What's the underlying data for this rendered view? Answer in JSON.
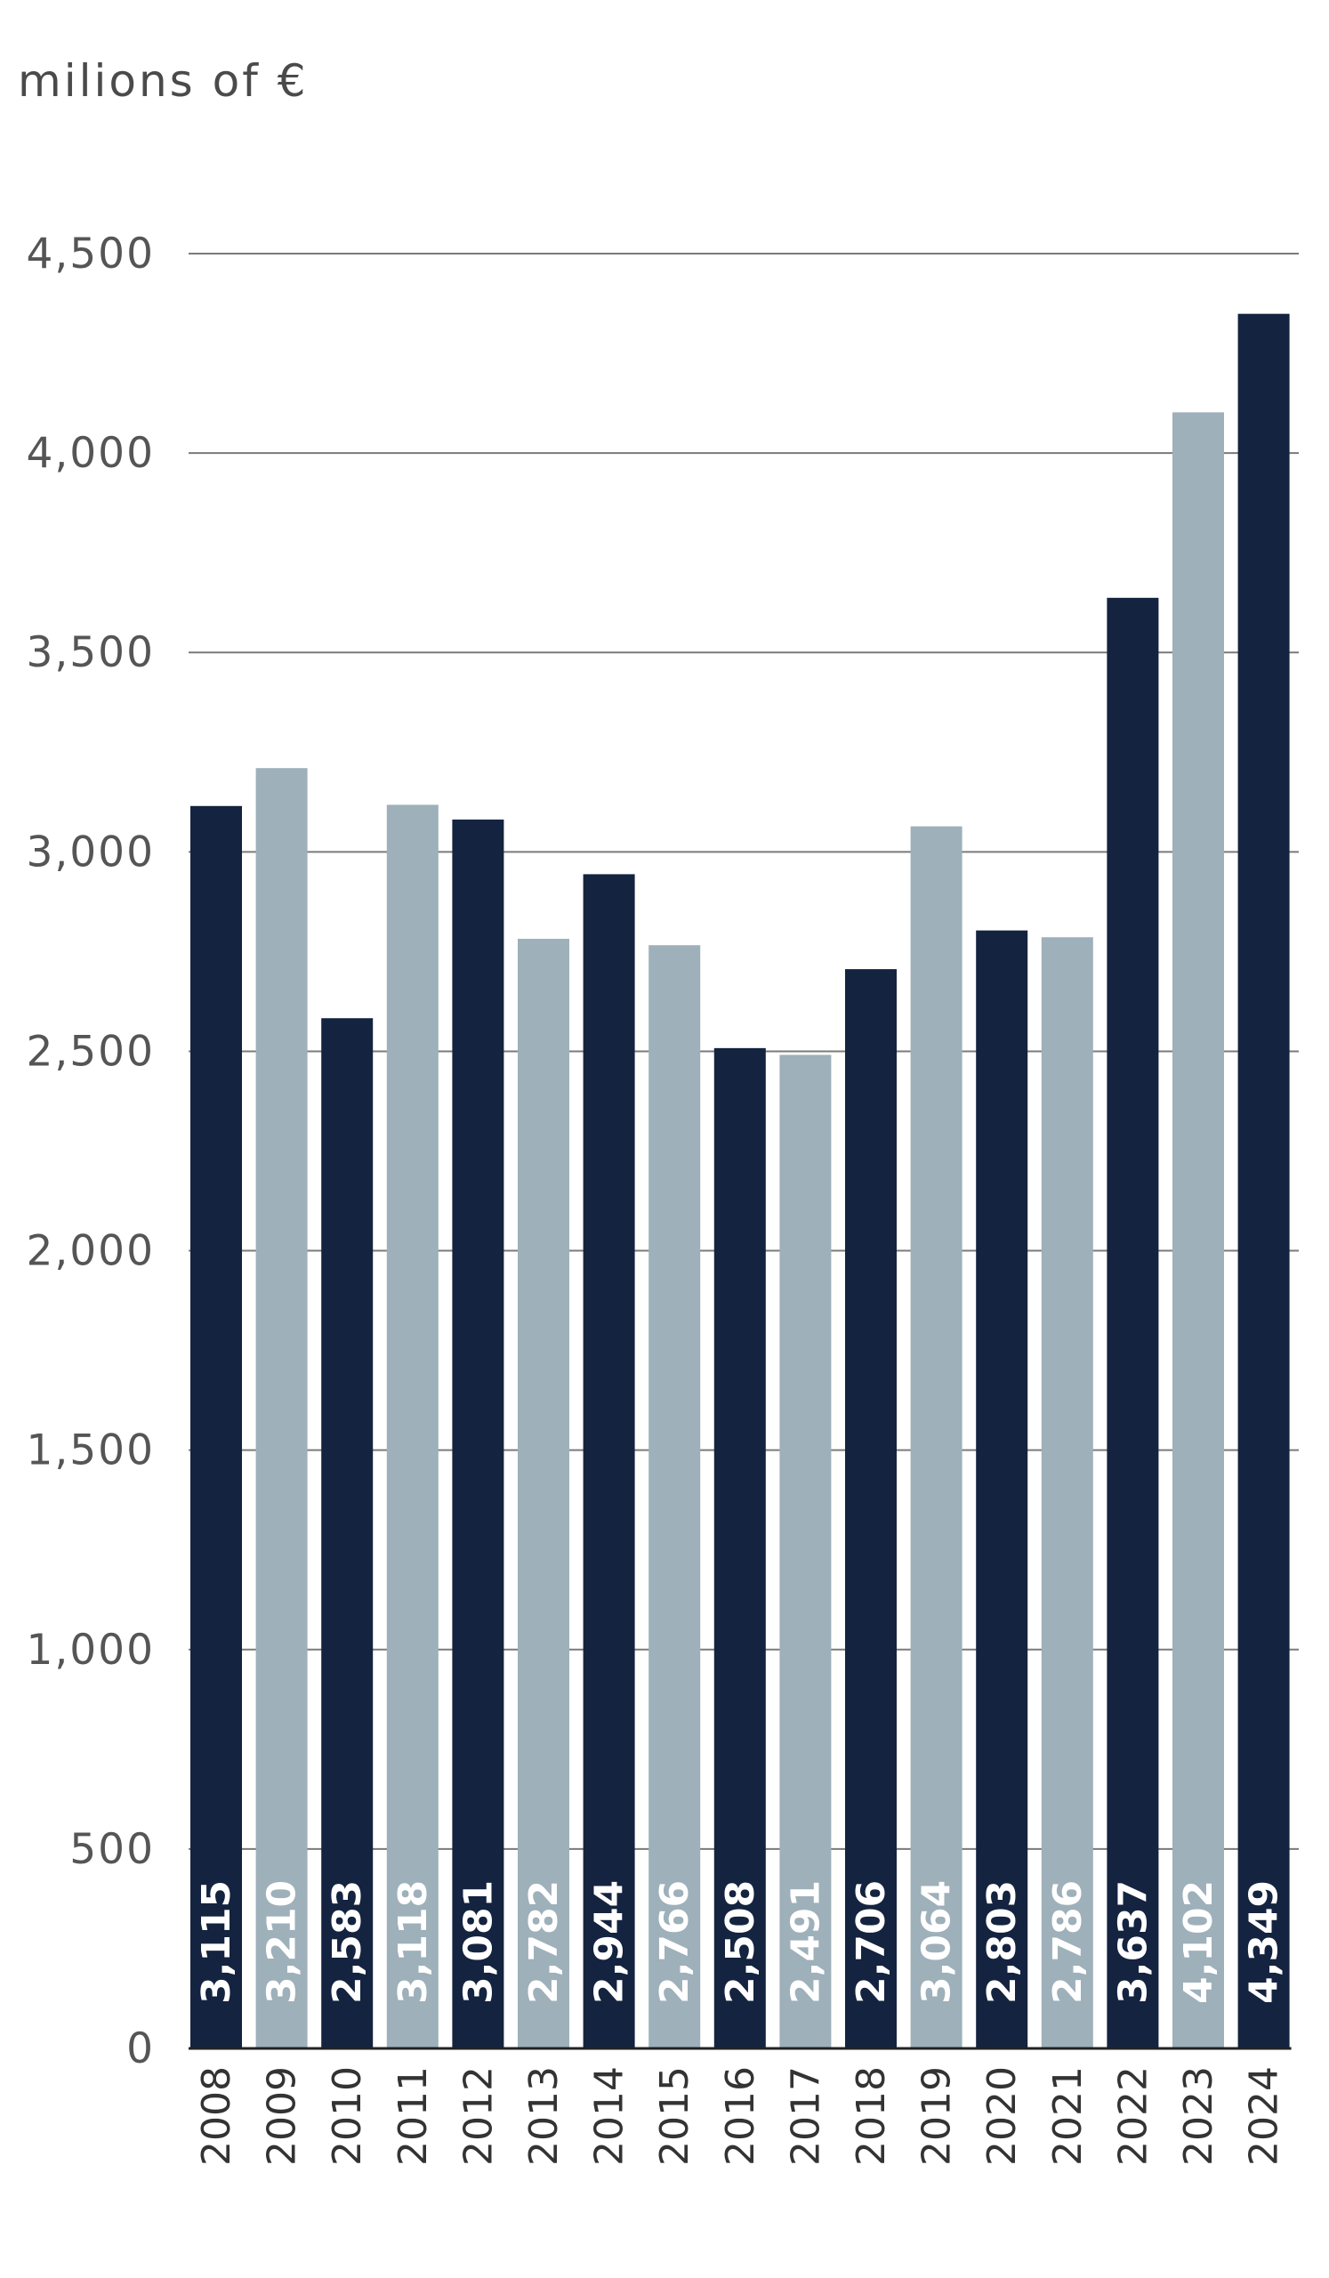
{
  "chart_data": {
    "type": "bar",
    "title": "",
    "xlabel": "",
    "ylabel": "milions of €",
    "ylim": [
      0,
      4500
    ],
    "yticks": [
      0,
      500,
      1000,
      1500,
      2000,
      2500,
      3000,
      3500,
      4000,
      4500
    ],
    "ytick_labels": [
      "0",
      "500",
      "1,000",
      "1,500",
      "2,000",
      "2,500",
      "3,000",
      "3,500",
      "4,000",
      "4,500"
    ],
    "grid": "horizontal",
    "categories": [
      "2008",
      "2009",
      "2010",
      "2011",
      "2012",
      "2013",
      "2014",
      "2015",
      "2016",
      "2017",
      "2018",
      "2019",
      "2020",
      "2021",
      "2022",
      "2023",
      "2024"
    ],
    "values": [
      3115,
      3210,
      2583,
      3118,
      3081,
      2782,
      2944,
      2766,
      2508,
      2491,
      2706,
      3064,
      2803,
      2786,
      3637,
      4102,
      4349
    ],
    "value_labels": [
      "3,115",
      "3,210",
      "2,583",
      "3,118",
      "3,081",
      "2,782",
      "2,944",
      "2,766",
      "2,508",
      "2,491",
      "2,706",
      "3,064",
      "2,803",
      "2,786",
      "3,637",
      "4,102",
      "4,349"
    ],
    "colors": {
      "dark": "#14233f",
      "light": "#9eb0ba"
    },
    "bar_color_pattern": [
      "dark",
      "light",
      "dark",
      "light",
      "dark",
      "light",
      "dark",
      "light",
      "dark",
      "light",
      "dark",
      "light",
      "dark",
      "light",
      "dark",
      "light",
      "dark"
    ]
  }
}
